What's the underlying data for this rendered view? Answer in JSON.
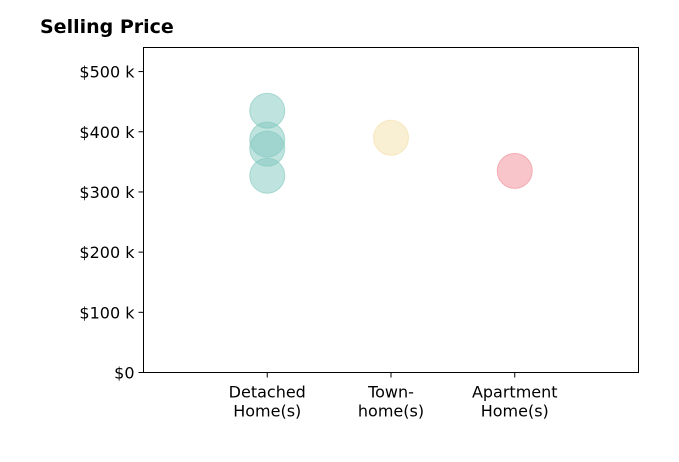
{
  "chart_data": {
    "type": "scatter",
    "title": "Selling Price",
    "xlabel": "",
    "ylabel": "",
    "categories": [
      [
        "Detached",
        "Home(s)"
      ],
      [
        "Town-",
        "home(s)"
      ],
      [
        "Apartment",
        "Home(s)"
      ]
    ],
    "ylim": [
      0,
      540000
    ],
    "yticks": [
      0,
      100000,
      200000,
      300000,
      400000,
      500000
    ],
    "ytick_labels": [
      "$0",
      "$100 k",
      "$200 k",
      "$300 k",
      "$400 k",
      "$500 k"
    ],
    "grid": false,
    "legend": false,
    "points": [
      {
        "category": 0,
        "value": 435000,
        "color": "#7fc8bd"
      },
      {
        "category": 0,
        "value": 387000,
        "color": "#7fc8bd"
      },
      {
        "category": 0,
        "value": 372000,
        "color": "#7fc8bd"
      },
      {
        "category": 0,
        "value": 327000,
        "color": "#7fc8bd"
      },
      {
        "category": 1,
        "value": 390000,
        "color": "#f3dfa6"
      },
      {
        "category": 2,
        "value": 335000,
        "color": "#f08c96"
      }
    ]
  }
}
